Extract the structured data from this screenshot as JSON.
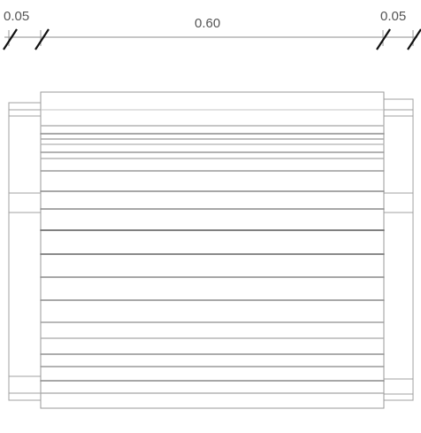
{
  "dimensions": {
    "left": "0.05",
    "center": "0.60",
    "right": "0.05"
  },
  "colors": {
    "line": "#8c8c8c",
    "line_dark": "#6e6e6e",
    "line_light": "#c4c4c4",
    "text": "#555555"
  }
}
